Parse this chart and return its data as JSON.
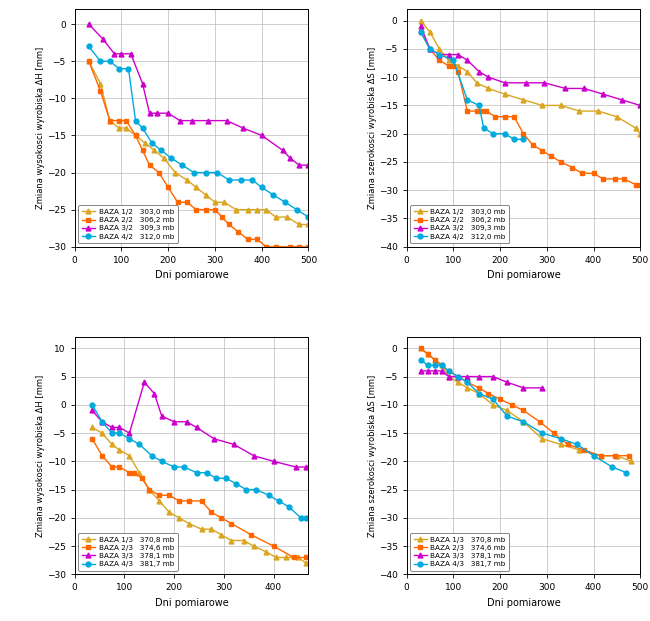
{
  "plot1": {
    "ylabel": "Zmiana wysokosci wyrobiska ΔH [mm]",
    "xlabel": "Dni pomiarowe",
    "xlim": [
      0,
      500
    ],
    "ylim": [
      -30,
      2
    ],
    "yticks": [
      0,
      -5,
      -10,
      -15,
      -20,
      -25,
      -30
    ],
    "xticks": [
      0,
      100,
      200,
      300,
      400,
      500
    ],
    "legend_loc": "lower left",
    "series": [
      {
        "label": "BAZA 1/2   303,0 mb",
        "color": "#DAA520",
        "marker": "^",
        "x": [
          30,
          55,
          75,
          95,
          110,
          130,
          150,
          170,
          190,
          215,
          240,
          260,
          280,
          300,
          320,
          345,
          370,
          390,
          410,
          430,
          455,
          480,
          500
        ],
        "y": [
          -5,
          -8,
          -13,
          -14,
          -14,
          -15,
          -16,
          -17,
          -18,
          -20,
          -21,
          -22,
          -23,
          -24,
          -24,
          -25,
          -25,
          -25,
          -25,
          -26,
          -26,
          -27,
          -27
        ]
      },
      {
        "label": "BAZA 2/2   306,2 mb",
        "color": "#FF6600",
        "marker": "s",
        "x": [
          30,
          55,
          75,
          95,
          110,
          130,
          145,
          160,
          180,
          200,
          220,
          240,
          260,
          280,
          300,
          315,
          330,
          350,
          370,
          390,
          410,
          430,
          460,
          480,
          500
        ],
        "y": [
          -5,
          -9,
          -13,
          -13,
          -13,
          -15,
          -17,
          -19,
          -20,
          -22,
          -24,
          -24,
          -25,
          -25,
          -25,
          -26,
          -27,
          -28,
          -29,
          -29,
          -30,
          -30,
          -30,
          -30,
          -30
        ]
      },
      {
        "label": "BAZA 3/2   309,3 mb",
        "color": "#CC00CC",
        "marker": "^",
        "x": [
          30,
          60,
          85,
          100,
          120,
          145,
          160,
          175,
          200,
          225,
          250,
          285,
          325,
          360,
          400,
          445,
          460,
          480,
          500
        ],
        "y": [
          0,
          -2,
          -4,
          -4,
          -4,
          -8,
          -12,
          -12,
          -12,
          -13,
          -13,
          -13,
          -13,
          -14,
          -15,
          -17,
          -18,
          -19,
          -19
        ]
      },
      {
        "label": "BAZA 4/2   312,0 mb",
        "color": "#00AADD",
        "marker": "o",
        "x": [
          30,
          55,
          75,
          95,
          115,
          130,
          145,
          165,
          185,
          205,
          230,
          255,
          280,
          305,
          330,
          355,
          380,
          400,
          425,
          450,
          475,
          500
        ],
        "y": [
          -3,
          -5,
          -5,
          -6,
          -6,
          -13,
          -14,
          -16,
          -17,
          -18,
          -19,
          -20,
          -20,
          -20,
          -21,
          -21,
          -21,
          -22,
          -23,
          -24,
          -25,
          -26
        ]
      }
    ]
  },
  "plot2": {
    "ylabel": "Zmiana szerokosci wyrobiska ΔS [mm]",
    "xlabel": "Dni pomiarowe",
    "xlim": [
      0,
      500
    ],
    "ylim": [
      -40,
      2
    ],
    "yticks": [
      0,
      -5,
      -10,
      -15,
      -20,
      -25,
      -30,
      -35,
      -40
    ],
    "xticks": [
      0,
      100,
      200,
      300,
      400,
      500
    ],
    "legend_loc": "lower left",
    "series": [
      {
        "label": "BAZA 1/2   303,0 mb",
        "color": "#DAA520",
        "marker": "^",
        "x": [
          30,
          50,
          70,
          90,
          110,
          130,
          150,
          175,
          210,
          250,
          290,
          330,
          370,
          410,
          450,
          490,
          500
        ],
        "y": [
          0,
          -2,
          -5,
          -7,
          -8,
          -9,
          -11,
          -12,
          -13,
          -14,
          -15,
          -15,
          -16,
          -16,
          -17,
          -19,
          -20
        ]
      },
      {
        "label": "BAZA 2/2   306,2 mb",
        "color": "#FF6600",
        "marker": "s",
        "x": [
          30,
          50,
          70,
          90,
          100,
          110,
          130,
          150,
          160,
          170,
          190,
          210,
          230,
          250,
          270,
          290,
          310,
          330,
          355,
          375,
          400,
          420,
          445,
          465,
          490,
          500
        ],
        "y": [
          -2,
          -5,
          -7,
          -8,
          -8,
          -9,
          -16,
          -16,
          -16,
          -16,
          -17,
          -17,
          -17,
          -20,
          -22,
          -23,
          -24,
          -25,
          -26,
          -27,
          -27,
          -28,
          -28,
          -28,
          -29,
          -29
        ]
      },
      {
        "label": "BAZA 3/2   309,3 mb",
        "color": "#CC00CC",
        "marker": "^",
        "x": [
          30,
          50,
          70,
          90,
          110,
          130,
          155,
          175,
          210,
          255,
          295,
          340,
          380,
          420,
          460,
          500
        ],
        "y": [
          -1,
          -5,
          -6,
          -6,
          -6,
          -7,
          -9,
          -10,
          -11,
          -11,
          -11,
          -12,
          -12,
          -13,
          -14,
          -15
        ]
      },
      {
        "label": "BAZA 4/2   312,0 mb",
        "color": "#00AADD",
        "marker": "o",
        "x": [
          30,
          50,
          70,
          100,
          130,
          155,
          165,
          185,
          210,
          230,
          250
        ],
        "y": [
          -2,
          -5,
          -6,
          -7,
          -14,
          -15,
          -19,
          -20,
          -20,
          -21,
          -21
        ]
      }
    ]
  },
  "plot3": {
    "ylabel": "Zmiana wysokosci wyrobiska ΔH [mm]",
    "xlabel": "Dni pomiarowe",
    "xlim": [
      0,
      470
    ],
    "ylim": [
      -30,
      12
    ],
    "yticks": [
      10,
      5,
      0,
      -5,
      -10,
      -15,
      -20,
      -25,
      -30
    ],
    "xticks": [
      0,
      100,
      200,
      300,
      400
    ],
    "legend_loc": "lower left",
    "series": [
      {
        "label": "BAZA 1/3   370,8 mb",
        "color": "#DAA520",
        "marker": "^",
        "x": [
          35,
          55,
          75,
          90,
          110,
          130,
          150,
          170,
          190,
          210,
          230,
          255,
          275,
          295,
          315,
          340,
          360,
          385,
          405,
          425,
          450,
          465
        ],
        "y": [
          -4,
          -5,
          -7,
          -8,
          -9,
          -12,
          -15,
          -17,
          -19,
          -20,
          -21,
          -22,
          -22,
          -23,
          -24,
          -24,
          -25,
          -26,
          -27,
          -27,
          -27,
          -28
        ]
      },
      {
        "label": "BAZA 2/3   374,6 mb",
        "color": "#FF6600",
        "marker": "s",
        "x": [
          35,
          55,
          75,
          90,
          110,
          120,
          135,
          150,
          170,
          190,
          210,
          230,
          255,
          275,
          295,
          315,
          355,
          400,
          440,
          465
        ],
        "y": [
          -6,
          -9,
          -11,
          -11,
          -12,
          -12,
          -13,
          -15,
          -16,
          -16,
          -17,
          -17,
          -17,
          -19,
          -20,
          -21,
          -23,
          -25,
          -27,
          -27
        ]
      },
      {
        "label": "BAZA 3/3   378,1 mb",
        "color": "#CC00CC",
        "marker": "^",
        "x": [
          35,
          55,
          75,
          90,
          110,
          140,
          160,
          175,
          200,
          225,
          245,
          280,
          320,
          360,
          400,
          445,
          465
        ],
        "y": [
          -1,
          -3,
          -4,
          -4,
          -5,
          4,
          2,
          -2,
          -3,
          -3,
          -4,
          -6,
          -7,
          -9,
          -10,
          -11,
          -11
        ]
      },
      {
        "label": "BAZA 4/3   381,7 mb",
        "color": "#00AADD",
        "marker": "o",
        "x": [
          35,
          55,
          75,
          90,
          110,
          130,
          155,
          175,
          200,
          220,
          245,
          265,
          285,
          305,
          325,
          345,
          365,
          390,
          410,
          430,
          455,
          465
        ],
        "y": [
          0,
          -3,
          -5,
          -5,
          -6,
          -7,
          -9,
          -10,
          -11,
          -11,
          -12,
          -12,
          -13,
          -13,
          -14,
          -15,
          -15,
          -16,
          -17,
          -18,
          -20,
          -20
        ]
      }
    ]
  },
  "plot4": {
    "ylabel": "Zmiana szerokosci wyrobiska ΔS [mm]",
    "xlabel": "Dni pomiarowe",
    "xlim": [
      0,
      500
    ],
    "ylim": [
      -40,
      2
    ],
    "yticks": [
      0,
      -5,
      -10,
      -15,
      -20,
      -25,
      -30,
      -35,
      -40
    ],
    "xticks": [
      0,
      100,
      200,
      300,
      400,
      500
    ],
    "legend_loc": "lower left",
    "series": [
      {
        "label": "BAZA 1/3   370,8 mb",
        "color": "#DAA520",
        "marker": "^",
        "x": [
          30,
          45,
          60,
          75,
          90,
          110,
          130,
          155,
          185,
          215,
          250,
          290,
          330,
          370,
          415,
          450,
          480
        ],
        "y": [
          0,
          -1,
          -2,
          -3,
          -5,
          -6,
          -7,
          -8,
          -10,
          -11,
          -13,
          -16,
          -17,
          -18,
          -19,
          -19,
          -20
        ]
      },
      {
        "label": "BAZA 2/3   374,6 mb",
        "color": "#FF6600",
        "marker": "s",
        "x": [
          30,
          45,
          60,
          75,
          90,
          110,
          130,
          155,
          175,
          200,
          225,
          250,
          285,
          315,
          345,
          380,
          415,
          445,
          475
        ],
        "y": [
          0,
          -1,
          -2,
          -3,
          -4,
          -5,
          -6,
          -7,
          -8,
          -9,
          -10,
          -11,
          -13,
          -15,
          -17,
          -18,
          -19,
          -19,
          -19
        ]
      },
      {
        "label": "BAZA 3/3   378,1 mb",
        "color": "#CC00CC",
        "marker": "^",
        "x": [
          30,
          45,
          60,
          75,
          90,
          110,
          130,
          155,
          185,
          215,
          250,
          290
        ],
        "y": [
          -4,
          -4,
          -4,
          -4,
          -5,
          -5,
          -5,
          -5,
          -5,
          -6,
          -7,
          -7
        ]
      },
      {
        "label": "BAZA 4/3   381,7 mb",
        "color": "#00AADD",
        "marker": "o",
        "x": [
          30,
          45,
          60,
          75,
          90,
          110,
          130,
          155,
          185,
          215,
          250,
          290,
          330,
          365,
          400,
          440,
          470
        ],
        "y": [
          -2,
          -3,
          -3,
          -3,
          -4,
          -5,
          -6,
          -8,
          -9,
          -12,
          -13,
          -15,
          -16,
          -17,
          -19,
          -21,
          -22
        ]
      }
    ]
  }
}
